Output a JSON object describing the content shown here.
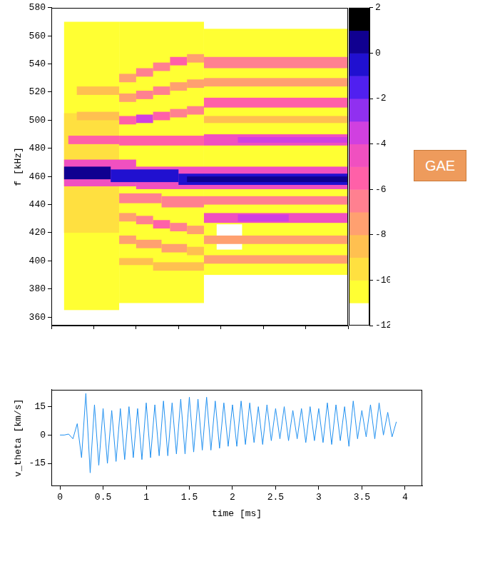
{
  "chart_data": [
    {
      "type": "heatmap",
      "ylabel": "f [kHz]",
      "xlim": [
        0,
        3.5
      ],
      "ylim": [
        354,
        580
      ],
      "yticks": [
        360,
        380,
        400,
        420,
        440,
        460,
        480,
        500,
        520,
        540,
        560,
        580
      ],
      "tick_labels": "y",
      "grid": false,
      "cells": [
        [
          0.15,
          0.8,
          365,
          570,
          -11
        ],
        [
          0.8,
          1.8,
          370,
          570,
          -11
        ],
        [
          1.8,
          3.5,
          390,
          565,
          -11
        ],
        [
          0.15,
          0.8,
          420,
          505,
          -10
        ],
        [
          1.95,
          2.25,
          408,
          426,
          -12
        ],
        [
          0.15,
          1.0,
          453,
          472,
          -5
        ],
        [
          1.0,
          3.5,
          451,
          467,
          -5
        ],
        [
          0.15,
          0.7,
          458,
          467,
          0
        ],
        [
          0.7,
          1.5,
          456,
          465,
          -1
        ],
        [
          1.5,
          3.5,
          454,
          462,
          -1
        ],
        [
          1.6,
          3.5,
          456,
          460,
          0
        ],
        [
          0.2,
          0.8,
          483,
          489,
          -6
        ],
        [
          0.8,
          1.8,
          482,
          489,
          -6
        ],
        [
          1.8,
          3.5,
          482,
          490,
          -5
        ],
        [
          2.2,
          3.5,
          484,
          488,
          -4
        ],
        [
          0.3,
          0.8,
          500,
          506,
          -9
        ],
        [
          0.3,
          0.8,
          518,
          524,
          -9
        ],
        [
          0.8,
          1.0,
          497,
          503,
          -6
        ],
        [
          1.0,
          1.2,
          498,
          504,
          -4
        ],
        [
          1.2,
          1.4,
          500,
          506,
          -6
        ],
        [
          1.4,
          1.6,
          502,
          508,
          -7
        ],
        [
          1.6,
          1.8,
          504,
          510,
          -7
        ],
        [
          0.8,
          1.0,
          513,
          519,
          -8
        ],
        [
          1.0,
          1.2,
          515,
          521,
          -7
        ],
        [
          1.2,
          1.4,
          518,
          524,
          -7
        ],
        [
          1.4,
          1.6,
          521,
          527,
          -8
        ],
        [
          1.6,
          1.8,
          523,
          529,
          -8
        ],
        [
          0.8,
          1.0,
          527,
          533,
          -8
        ],
        [
          1.0,
          1.2,
          531,
          537,
          -7
        ],
        [
          1.2,
          1.4,
          535,
          541,
          -7
        ],
        [
          1.4,
          1.6,
          539,
          545,
          -6
        ],
        [
          1.6,
          1.8,
          541,
          547,
          -8
        ],
        [
          0.8,
          1.3,
          441,
          448,
          -7
        ],
        [
          1.3,
          1.8,
          438,
          446,
          -7
        ],
        [
          0.8,
          1.0,
          428,
          434,
          -8
        ],
        [
          1.0,
          1.2,
          426,
          432,
          -7
        ],
        [
          1.2,
          1.4,
          423,
          429,
          -6
        ],
        [
          1.4,
          1.6,
          421,
          427,
          -7
        ],
        [
          1.6,
          1.8,
          419,
          425,
          -8
        ],
        [
          0.8,
          1.0,
          412,
          418,
          -8
        ],
        [
          1.0,
          1.3,
          409,
          415,
          -8
        ],
        [
          1.3,
          1.6,
          406,
          412,
          -8
        ],
        [
          1.6,
          1.8,
          404,
          410,
          -9
        ],
        [
          0.8,
          1.2,
          397,
          402,
          -9
        ],
        [
          1.2,
          1.8,
          393,
          399,
          -9
        ],
        [
          1.8,
          3.5,
          537,
          545,
          -7
        ],
        [
          1.8,
          3.5,
          524,
          530,
          -8
        ],
        [
          1.8,
          3.5,
          509,
          516,
          -6
        ],
        [
          1.8,
          3.5,
          498,
          503,
          -9
        ],
        [
          1.8,
          3.5,
          440,
          446,
          -7
        ],
        [
          1.8,
          3.5,
          427,
          434,
          -5
        ],
        [
          2.2,
          2.8,
          428,
          433,
          -4
        ],
        [
          1.8,
          3.5,
          412,
          418,
          -8
        ],
        [
          1.8,
          3.5,
          398,
          404,
          -8
        ]
      ],
      "colorbar": {
        "range": [
          -12,
          2
        ],
        "ticks": [
          -12,
          -10,
          -8,
          -6,
          -4,
          -2,
          0,
          2
        ],
        "colors": [
          "#ffffff",
          "#ffff33",
          "#ffe040",
          "#ffc050",
          "#ffa070",
          "#ff8090",
          "#ff60a8",
          "#f050c0",
          "#d040e0",
          "#9030f0",
          "#5020f0",
          "#2010d0",
          "#100090",
          "#000000"
        ]
      },
      "annotations": [
        {
          "text": "GAE"
        }
      ]
    },
    {
      "type": "line",
      "xlabel": "time [ms]",
      "ylabel": "v_theta [km/s]",
      "color": "#2090f0",
      "xlim": [
        -0.1,
        4.2
      ],
      "xticks": [
        0,
        0.5,
        1,
        1.5,
        2,
        2.5,
        3,
        3.5,
        4
      ],
      "ylim": [
        -27,
        24
      ],
      "yticks": [
        -15,
        0,
        15
      ],
      "grid": false,
      "x": [
        0.0,
        0.05,
        0.1,
        0.15,
        0.2,
        0.25,
        0.3,
        0.35,
        0.4,
        0.45,
        0.5,
        0.55,
        0.6,
        0.65,
        0.7,
        0.75,
        0.8,
        0.85,
        0.9,
        0.95,
        1.0,
        1.05,
        1.1,
        1.15,
        1.2,
        1.25,
        1.3,
        1.35,
        1.4,
        1.45,
        1.5,
        1.55,
        1.6,
        1.65,
        1.7,
        1.75,
        1.8,
        1.85,
        1.9,
        1.95,
        2.0,
        2.05,
        2.1,
        2.15,
        2.2,
        2.25,
        2.3,
        2.35,
        2.4,
        2.45,
        2.5,
        2.55,
        2.6,
        2.65,
        2.7,
        2.75,
        2.8,
        2.85,
        2.9,
        2.95,
        3.0,
        3.05,
        3.1,
        3.15,
        3.2,
        3.25,
        3.3,
        3.35,
        3.4,
        3.45,
        3.5,
        3.55,
        3.6,
        3.65,
        3.7,
        3.75,
        3.8,
        3.85,
        3.9
      ],
      "values": [
        0,
        0,
        0.5,
        -2,
        6,
        -12,
        22,
        -20,
        16,
        -16,
        14,
        -15,
        13,
        -14,
        14,
        -13,
        15,
        -12,
        14,
        -13,
        17,
        -12,
        16,
        -11,
        18,
        -11,
        17,
        -10,
        19,
        -10,
        20,
        -9,
        19,
        -8,
        20,
        -8,
        18,
        -7,
        17,
        -6,
        16,
        -6,
        18,
        -5,
        17,
        -4,
        15,
        -5,
        16,
        -3,
        14,
        -2,
        15,
        -3,
        13,
        -2,
        14,
        -4,
        15,
        -3,
        14,
        -4,
        17,
        -5,
        16,
        -3,
        15,
        -6,
        18,
        -2,
        13,
        -1,
        16,
        -2,
        17,
        0,
        12,
        -1,
        7
      ]
    }
  ]
}
